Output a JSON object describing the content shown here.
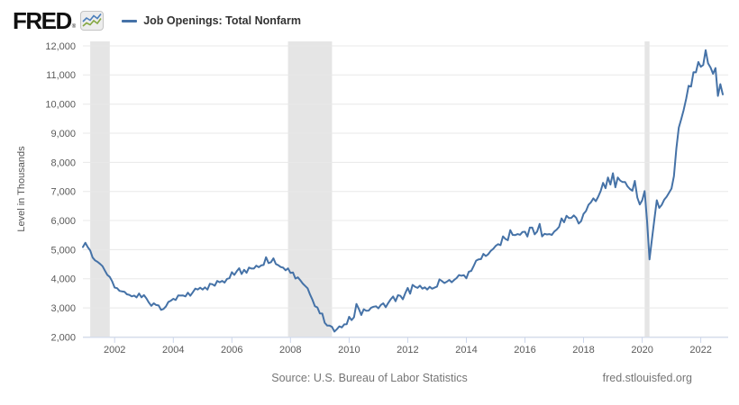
{
  "header": {
    "logo_text": "FRED",
    "logo_mark": "®",
    "legend": {
      "label": "Job Openings: Total Nonfarm",
      "line_color": "#4572a7"
    }
  },
  "footer": {
    "source": "Source: U.S. Bureau of Labor Statistics",
    "link": "fred.stlouisfed.org"
  },
  "chart_data": {
    "type": "line",
    "title": "Job Openings: Total Nonfarm",
    "ylabel": "Level in Thousands",
    "freq": "monthly",
    "x_start": "2000-12",
    "x_end": "2022-10",
    "ylim": [
      2000,
      12000
    ],
    "y_tick_step": 1000,
    "y_tick_labels": [
      "2,000",
      "3,000",
      "4,000",
      "5,000",
      "6,000",
      "7,000",
      "8,000",
      "9,000",
      "10,000",
      "11,000",
      "12,000"
    ],
    "x_tick_years": [
      2002,
      2004,
      2006,
      2008,
      2010,
      2012,
      2014,
      2016,
      2018,
      2020,
      2022
    ],
    "grid": true,
    "legend_position": "top-left",
    "line_color": "#4572a7",
    "band_color": "#e5e5e5",
    "recession_bands": [
      {
        "start": "2001-03",
        "end": "2001-11"
      },
      {
        "start": "2007-12",
        "end": "2009-06"
      },
      {
        "start": "2020-02",
        "end": "2020-04"
      }
    ],
    "series": [
      {
        "name": "Job Openings: Total Nonfarm",
        "units": "thousands",
        "values": [
          5088,
          5234,
          5086,
          4971,
          4727,
          4631,
          4580,
          4511,
          4432,
          4279,
          4130,
          4064,
          3907,
          3698,
          3675,
          3584,
          3566,
          3553,
          3465,
          3447,
          3394,
          3421,
          3359,
          3493,
          3362,
          3438,
          3324,
          3182,
          3069,
          3158,
          3098,
          3083,
          2932,
          2962,
          3049,
          3204,
          3246,
          3310,
          3272,
          3427,
          3421,
          3424,
          3396,
          3520,
          3415,
          3533,
          3660,
          3630,
          3691,
          3629,
          3704,
          3626,
          3826,
          3811,
          3760,
          3924,
          3879,
          3925,
          3868,
          3995,
          4020,
          4226,
          4130,
          4256,
          4363,
          4162,
          4307,
          4204,
          4385,
          4350,
          4351,
          4448,
          4395,
          4458,
          4474,
          4741,
          4540,
          4570,
          4704,
          4505,
          4463,
          4404,
          4382,
          4290,
          4356,
          4203,
          4215,
          4007,
          4046,
          3949,
          3836,
          3753,
          3674,
          3460,
          3276,
          3059,
          3013,
          2810,
          2803,
          2488,
          2393,
          2391,
          2345,
          2185,
          2265,
          2364,
          2328,
          2433,
          2440,
          2692,
          2577,
          2676,
          3134,
          2962,
          2754,
          2951,
          2899,
          2907,
          3004,
          3038,
          3055,
          2982,
          3102,
          3158,
          3021,
          3163,
          3292,
          3391,
          3227,
          3436,
          3414,
          3293,
          3506,
          3685,
          3486,
          3789,
          3724,
          3684,
          3763,
          3661,
          3703,
          3631,
          3721,
          3658,
          3694,
          3731,
          3980,
          3921,
          3853,
          3900,
          3960,
          3881,
          3958,
          4023,
          4128,
          4103,
          4124,
          4015,
          4241,
          4269,
          4438,
          4621,
          4665,
          4675,
          4853,
          4780,
          4845,
          4958,
          5028,
          5128,
          5187,
          5153,
          5456,
          5366,
          5323,
          5669,
          5507,
          5501,
          5534,
          5511,
          5607,
          5615,
          5452,
          5757,
          5756,
          5524,
          5621,
          5883,
          5454,
          5543,
          5523,
          5534,
          5505,
          5622,
          5690,
          5785,
          6071,
          5940,
          6163,
          6089,
          6090,
          6177,
          6090,
          5896,
          5978,
          6227,
          6326,
          6540,
          6625,
          6763,
          6662,
          6822,
          7013,
          7293,
          7110,
          7479,
          7236,
          7625,
          7142,
          7480,
          7372,
          7322,
          7326,
          7174,
          7083,
          7024,
          7361,
          6787,
          6552,
          6697,
          7012,
          5981,
          4664,
          5361,
          6038,
          6697,
          6435,
          6538,
          6717,
          6818,
          6956,
          7099,
          7526,
          8474,
          9193,
          9483,
          9798,
          10185,
          10629,
          10602,
          11098,
          11091,
          11448,
          11283,
          11344,
          11855,
          11400,
          11254,
          11040,
          11239,
          10280,
          10687,
          10334
        ]
      }
    ]
  }
}
